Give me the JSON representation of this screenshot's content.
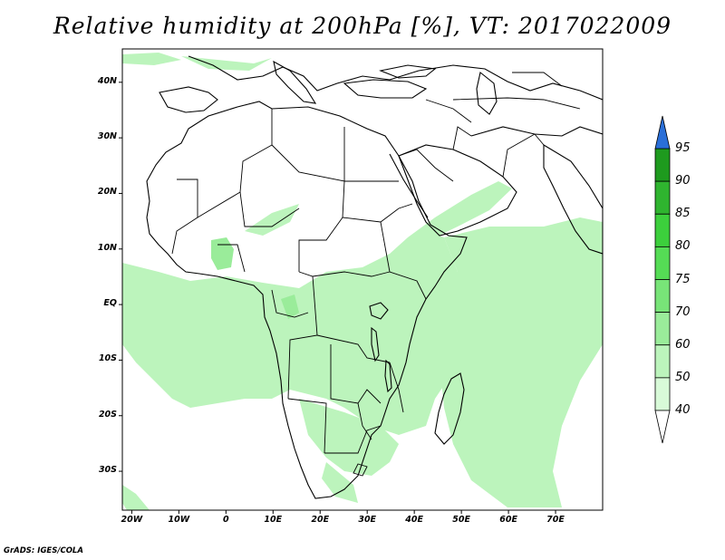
{
  "title": "Relative humidity at 200hPa [%], VT: 2017022009",
  "footer": "GrADS: IGES/COLA",
  "map": {
    "lon_range": [
      -22,
      80
    ],
    "lat_range": [
      -37,
      46
    ],
    "lat_labels": [
      {
        "lat": 40,
        "text": "40N"
      },
      {
        "lat": 30,
        "text": "30N"
      },
      {
        "lat": 20,
        "text": "20N"
      },
      {
        "lat": 10,
        "text": "10N"
      },
      {
        "lat": 0,
        "text": "EQ"
      },
      {
        "lat": -10,
        "text": "10S"
      },
      {
        "lat": -20,
        "text": "20S"
      },
      {
        "lat": -30,
        "text": "30S"
      }
    ],
    "lon_labels": [
      {
        "lon": -20,
        "text": "20W"
      },
      {
        "lon": -10,
        "text": "10W"
      },
      {
        "lon": 0,
        "text": "0"
      },
      {
        "lon": 10,
        "text": "10E"
      },
      {
        "lon": 20,
        "text": "20E"
      },
      {
        "lon": 30,
        "text": "30E"
      },
      {
        "lon": 40,
        "text": "40E"
      },
      {
        "lon": 50,
        "text": "50E"
      },
      {
        "lon": 60,
        "text": "60E"
      },
      {
        "lon": 70,
        "text": "70E"
      }
    ]
  },
  "colorbar": {
    "levels": [
      "95",
      "90",
      "85",
      "80",
      "75",
      "70",
      "60",
      "50",
      "40"
    ],
    "colors": [
      "#1e9a1e",
      "#2fb42f",
      "#3ccf3c",
      "#55dc55",
      "#78e478",
      "#9aec9a",
      "#bcf4bc",
      "#d8fad8"
    ],
    "over_color": "#2a6fd8",
    "under_color": "#ffffff"
  }
}
